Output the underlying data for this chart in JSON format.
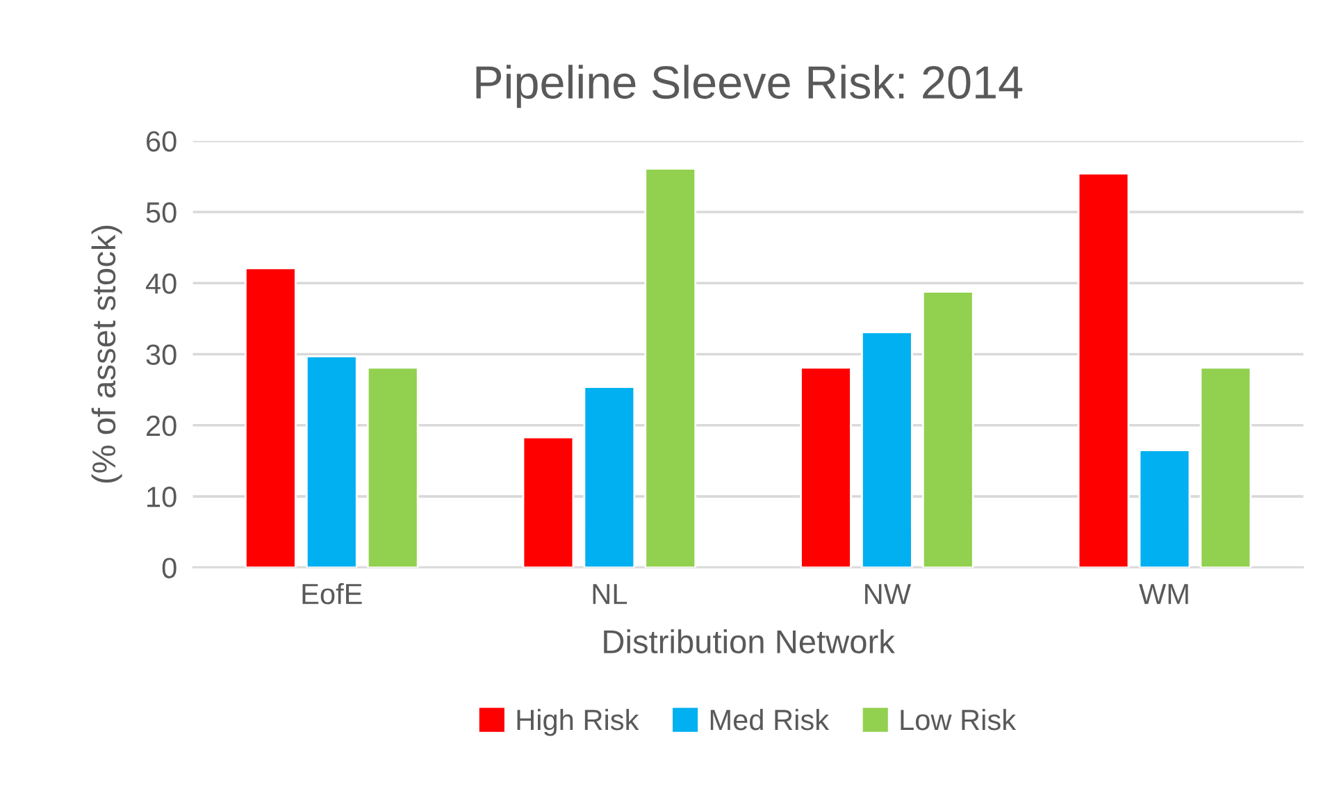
{
  "chart_data": {
    "type": "bar",
    "title": "Pipeline Sleeve Risk: 2014",
    "xlabel": "Distribution Network",
    "ylabel": "(% of asset stock)",
    "categories": [
      "EofE",
      "NL",
      "NW",
      "WM"
    ],
    "series": [
      {
        "name": "High Risk",
        "color": "#ff0000",
        "values": [
          42.1,
          18.3,
          28.1,
          55.4
        ]
      },
      {
        "name": "Med Risk",
        "color": "#00b0f0",
        "values": [
          29.7,
          25.4,
          33.1,
          16.5
        ]
      },
      {
        "name": "Low Risk",
        "color": "#92d050",
        "values": [
          28.1,
          56.1,
          38.8,
          28.1
        ]
      }
    ],
    "ylim": [
      0,
      60
    ],
    "yticks": [
      0,
      10,
      20,
      30,
      40,
      50,
      60
    ],
    "grid": "y",
    "legend": "bottom"
  }
}
